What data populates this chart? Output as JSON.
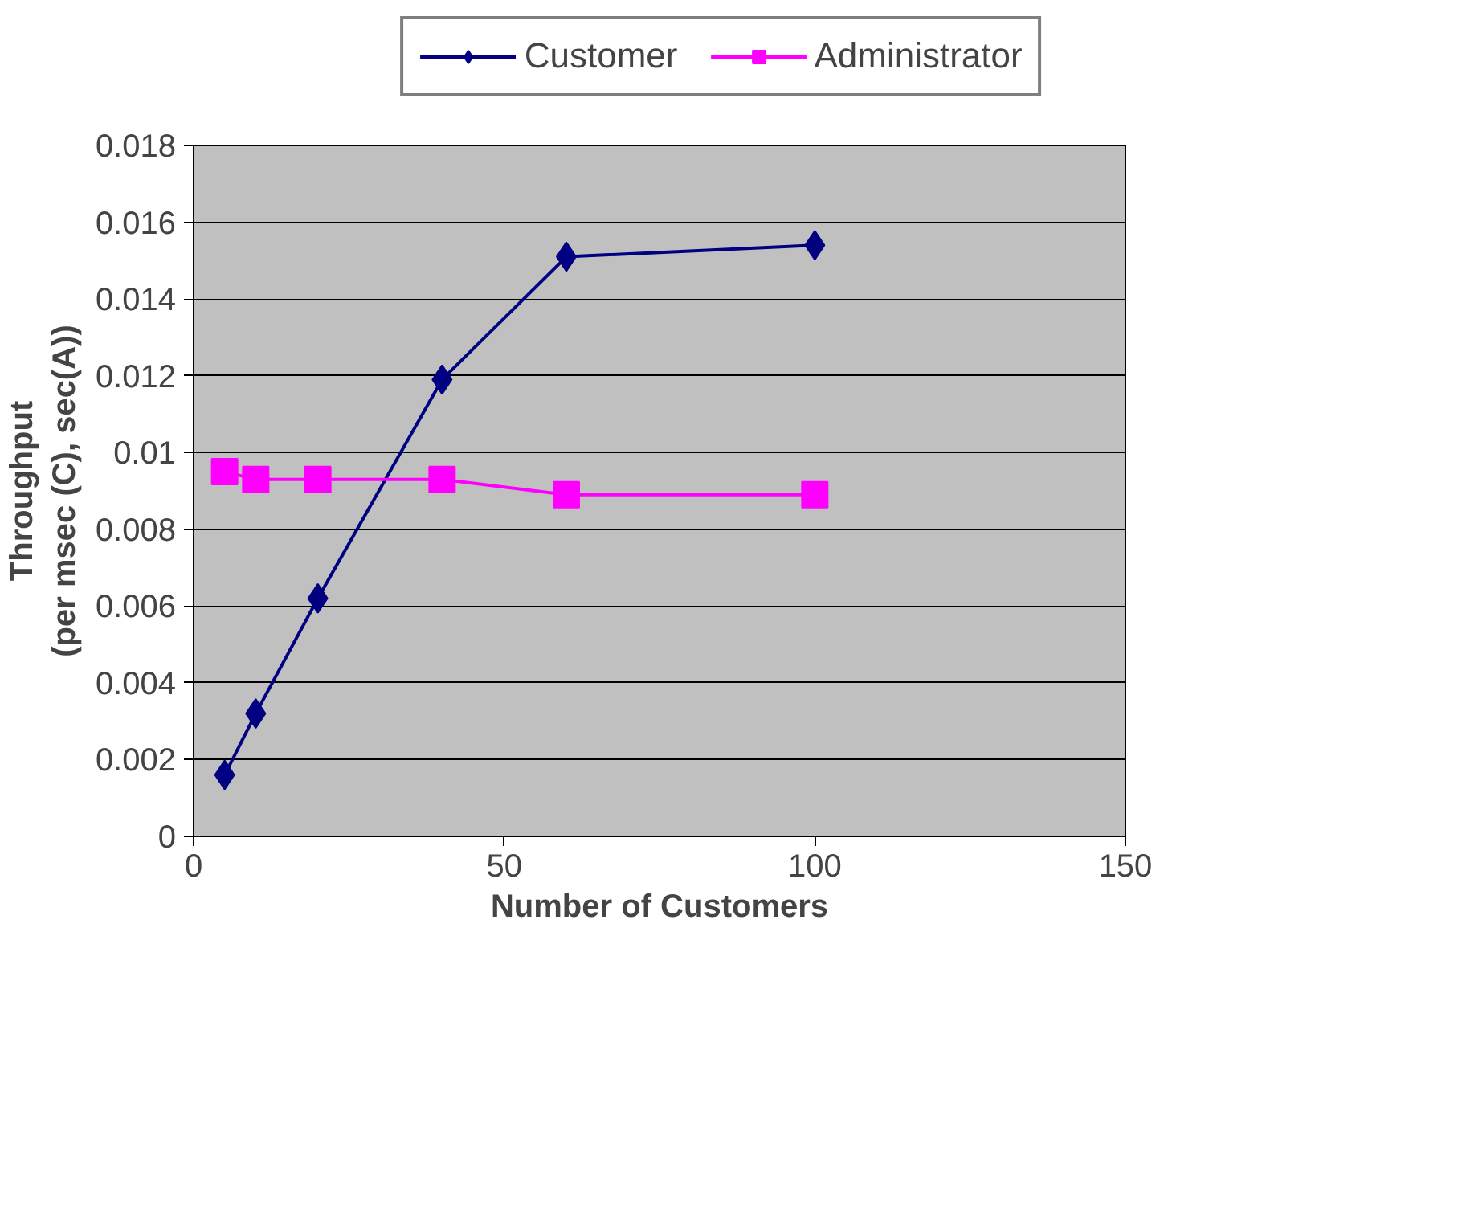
{
  "chart_data": {
    "type": "line",
    "xlabel": "Number of Customers",
    "ylabel": "Throughput\n(per msec (C), sec(A))",
    "xlim": [
      0,
      150
    ],
    "xticks": [
      0,
      50,
      100,
      150
    ],
    "ylim": [
      0,
      0.018
    ],
    "yticks": [
      0,
      0.002,
      0.004,
      0.006,
      0.008,
      0.01,
      0.012,
      0.014,
      0.016,
      0.018
    ],
    "grid": "y",
    "legend": "top",
    "series": [
      {
        "name": "Customer",
        "color": "#000080",
        "marker": "diamond",
        "x": [
          5,
          10,
          20,
          40,
          60,
          100
        ],
        "values": [
          0.0016,
          0.0032,
          0.0062,
          0.0119,
          0.0151,
          0.0154
        ]
      },
      {
        "name": "Administrator",
        "color": "#ff00ff",
        "marker": "square",
        "x": [
          5,
          10,
          20,
          40,
          60,
          100
        ],
        "values": [
          0.0095,
          0.0093,
          0.0093,
          0.0093,
          0.0089,
          0.0089
        ]
      }
    ]
  }
}
